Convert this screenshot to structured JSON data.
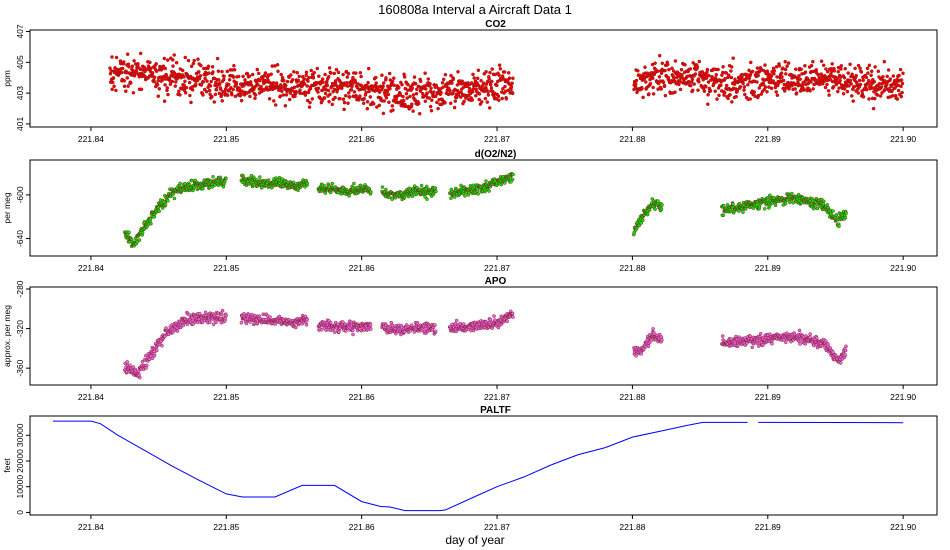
{
  "figure": {
    "title": "160808a   Interval a Aircraft Data 1",
    "xlabel": "day of year"
  },
  "chart_data": [
    {
      "type": "scatter",
      "title": "CO2",
      "ylabel": "ppm",
      "xlabel": "",
      "xlim": [
        221.8355,
        221.9025
      ],
      "ylim": [
        400.8,
        407.1
      ],
      "x_ticks": [
        "221.84",
        "221.85",
        "221.86",
        "221.87",
        "221.88",
        "221.89",
        "221.90"
      ],
      "y_ticks": [
        "401",
        "403",
        "405",
        "407"
      ],
      "color": "#ff0000",
      "segments": [
        {
          "x": [
            221.8414,
            221.843,
            221.845,
            221.847,
            221.849,
            221.851,
            221.853,
            221.855,
            221.857,
            221.859,
            221.861,
            221.863,
            221.865,
            221.867,
            221.869,
            221.8712
          ],
          "y": [
            404.2,
            404.4,
            404.1,
            404.0,
            403.7,
            403.5,
            403.6,
            403.4,
            403.5,
            403.3,
            403.2,
            403.0,
            403.1,
            403.3,
            403.4,
            403.6
          ]
        },
        {
          "x": [
            221.8801,
            221.882,
            221.884,
            221.886,
            221.888,
            221.89,
            221.892,
            221.894,
            221.896,
            221.898,
            221.9
          ],
          "y": [
            403.6,
            404.0,
            404.1,
            403.9,
            403.8,
            403.9,
            403.8,
            403.9,
            403.7,
            403.6,
            403.6
          ]
        }
      ],
      "scatter_sd": 0.75
    },
    {
      "type": "scatter",
      "title": "d(O2/N2)",
      "ylabel": "per meg",
      "xlabel": "",
      "xlim": [
        221.8355,
        221.9025
      ],
      "ylim": [
        -656,
        -568
      ],
      "x_ticks": [
        "221.84",
        "221.85",
        "221.86",
        "221.87",
        "221.88",
        "221.89",
        "221.90"
      ],
      "y_ticks": [
        "-640",
        "-600"
      ],
      "color": "#00ee00",
      "segments": [
        {
          "x": [
            221.8425,
            221.8432,
            221.844,
            221.845,
            221.846,
            221.847,
            221.848,
            221.849,
            221.85
          ],
          "y": [
            -634,
            -645,
            -628,
            -612,
            -598,
            -593,
            -591,
            -589,
            -588
          ]
        },
        {
          "x": [
            221.8511,
            221.852,
            221.853,
            221.854,
            221.855,
            221.856
          ],
          "y": [
            -586,
            -588,
            -590,
            -589,
            -591,
            -590
          ]
        },
        {
          "x": [
            221.8568,
            221.858,
            221.859,
            221.86,
            221.8607
          ],
          "y": [
            -594,
            -595,
            -596,
            -595,
            -596
          ]
        },
        {
          "x": [
            221.8615,
            221.863,
            221.864,
            221.8655
          ],
          "y": [
            -598,
            -600,
            -597,
            -598
          ]
        },
        {
          "x": [
            221.8665,
            221.868,
            221.869,
            221.87,
            221.8712
          ],
          "y": [
            -599,
            -596,
            -594,
            -588,
            -583
          ]
        },
        {
          "x": [
            221.8801,
            221.8807,
            221.8815,
            221.8822
          ],
          "y": [
            -633,
            -622,
            -607,
            -612
          ]
        },
        {
          "x": [
            221.8866,
            221.888,
            221.89,
            221.892,
            221.894,
            221.8952,
            221.8958
          ],
          "y": [
            -614,
            -611,
            -606,
            -603,
            -609,
            -624,
            -614
          ]
        }
      ],
      "scatter_sd": 3.2
    },
    {
      "type": "scatter",
      "title": "APO",
      "ylabel": "approx. per meg",
      "xlabel": "",
      "xlim": [
        221.8355,
        221.9025
      ],
      "ylim": [
        -377,
        -278
      ],
      "x_ticks": [
        "221.84",
        "221.85",
        "221.86",
        "221.87",
        "221.88",
        "221.89",
        "221.90"
      ],
      "y_ticks": [
        "-360",
        "-320",
        "-280"
      ],
      "color": "#ee66ee",
      "segments": [
        {
          "x": [
            221.8425,
            221.8435,
            221.8445,
            221.8455,
            221.847,
            221.849,
            221.85
          ],
          "y": [
            -358,
            -365,
            -345,
            -325,
            -311,
            -309,
            -310
          ]
        },
        {
          "x": [
            221.8511,
            221.853,
            221.855,
            221.856
          ],
          "y": [
            -309,
            -311,
            -313,
            -312
          ]
        },
        {
          "x": [
            221.8568,
            221.858,
            221.86,
            221.8607
          ],
          "y": [
            -315,
            -318,
            -319,
            -318
          ]
        },
        {
          "x": [
            221.8615,
            221.863,
            221.864,
            221.8655
          ],
          "y": [
            -318,
            -322,
            -318,
            -320
          ]
        },
        {
          "x": [
            221.8665,
            221.868,
            221.87,
            221.8712
          ],
          "y": [
            -321,
            -318,
            -314,
            -305
          ]
        },
        {
          "x": [
            221.8801,
            221.8808,
            221.8815,
            221.8822
          ],
          "y": [
            -345,
            -340,
            -327,
            -332
          ]
        },
        {
          "x": [
            221.8866,
            221.888,
            221.89,
            221.892,
            221.894,
            221.8952,
            221.8958
          ],
          "y": [
            -335,
            -333,
            -330,
            -328,
            -334,
            -352,
            -343
          ]
        }
      ],
      "scatter_sd": 3.8
    },
    {
      "type": "line",
      "title": "PALTF",
      "ylabel": "feet",
      "xlabel": "day of year",
      "xlim": [
        221.8355,
        221.9025
      ],
      "ylim": [
        -1000,
        37500
      ],
      "x_ticks": [
        "221.84",
        "221.85",
        "221.86",
        "221.87",
        "221.88",
        "221.89",
        "221.90"
      ],
      "y_ticks": [
        "0",
        "10000",
        "20000",
        "30000"
      ],
      "color": "#0000ff",
      "segments": [
        {
          "x": [
            221.8372,
            221.84,
            221.8407,
            221.842,
            221.844,
            221.846,
            221.848,
            221.85,
            221.8512,
            221.8536,
            221.8556,
            221.858,
            221.86,
            221.8614,
            221.8621,
            221.8632,
            221.8658,
            221.8662,
            221.8683,
            221.87,
            221.872,
            221.874,
            221.876,
            221.878,
            221.88,
            221.882,
            221.884,
            221.8852,
            221.8885
          ],
          "y": [
            35500,
            35500,
            34500,
            30000,
            24000,
            18000,
            12500,
            7200,
            6000,
            6000,
            10500,
            10500,
            4200,
            2300,
            2100,
            700,
            700,
            1000,
            6000,
            10000,
            13800,
            18500,
            22500,
            25200,
            29300,
            31500,
            33800,
            35000,
            35000
          ]
        },
        {
          "x": [
            221.8893,
            221.9
          ],
          "y": [
            35000,
            34900
          ]
        }
      ]
    }
  ]
}
